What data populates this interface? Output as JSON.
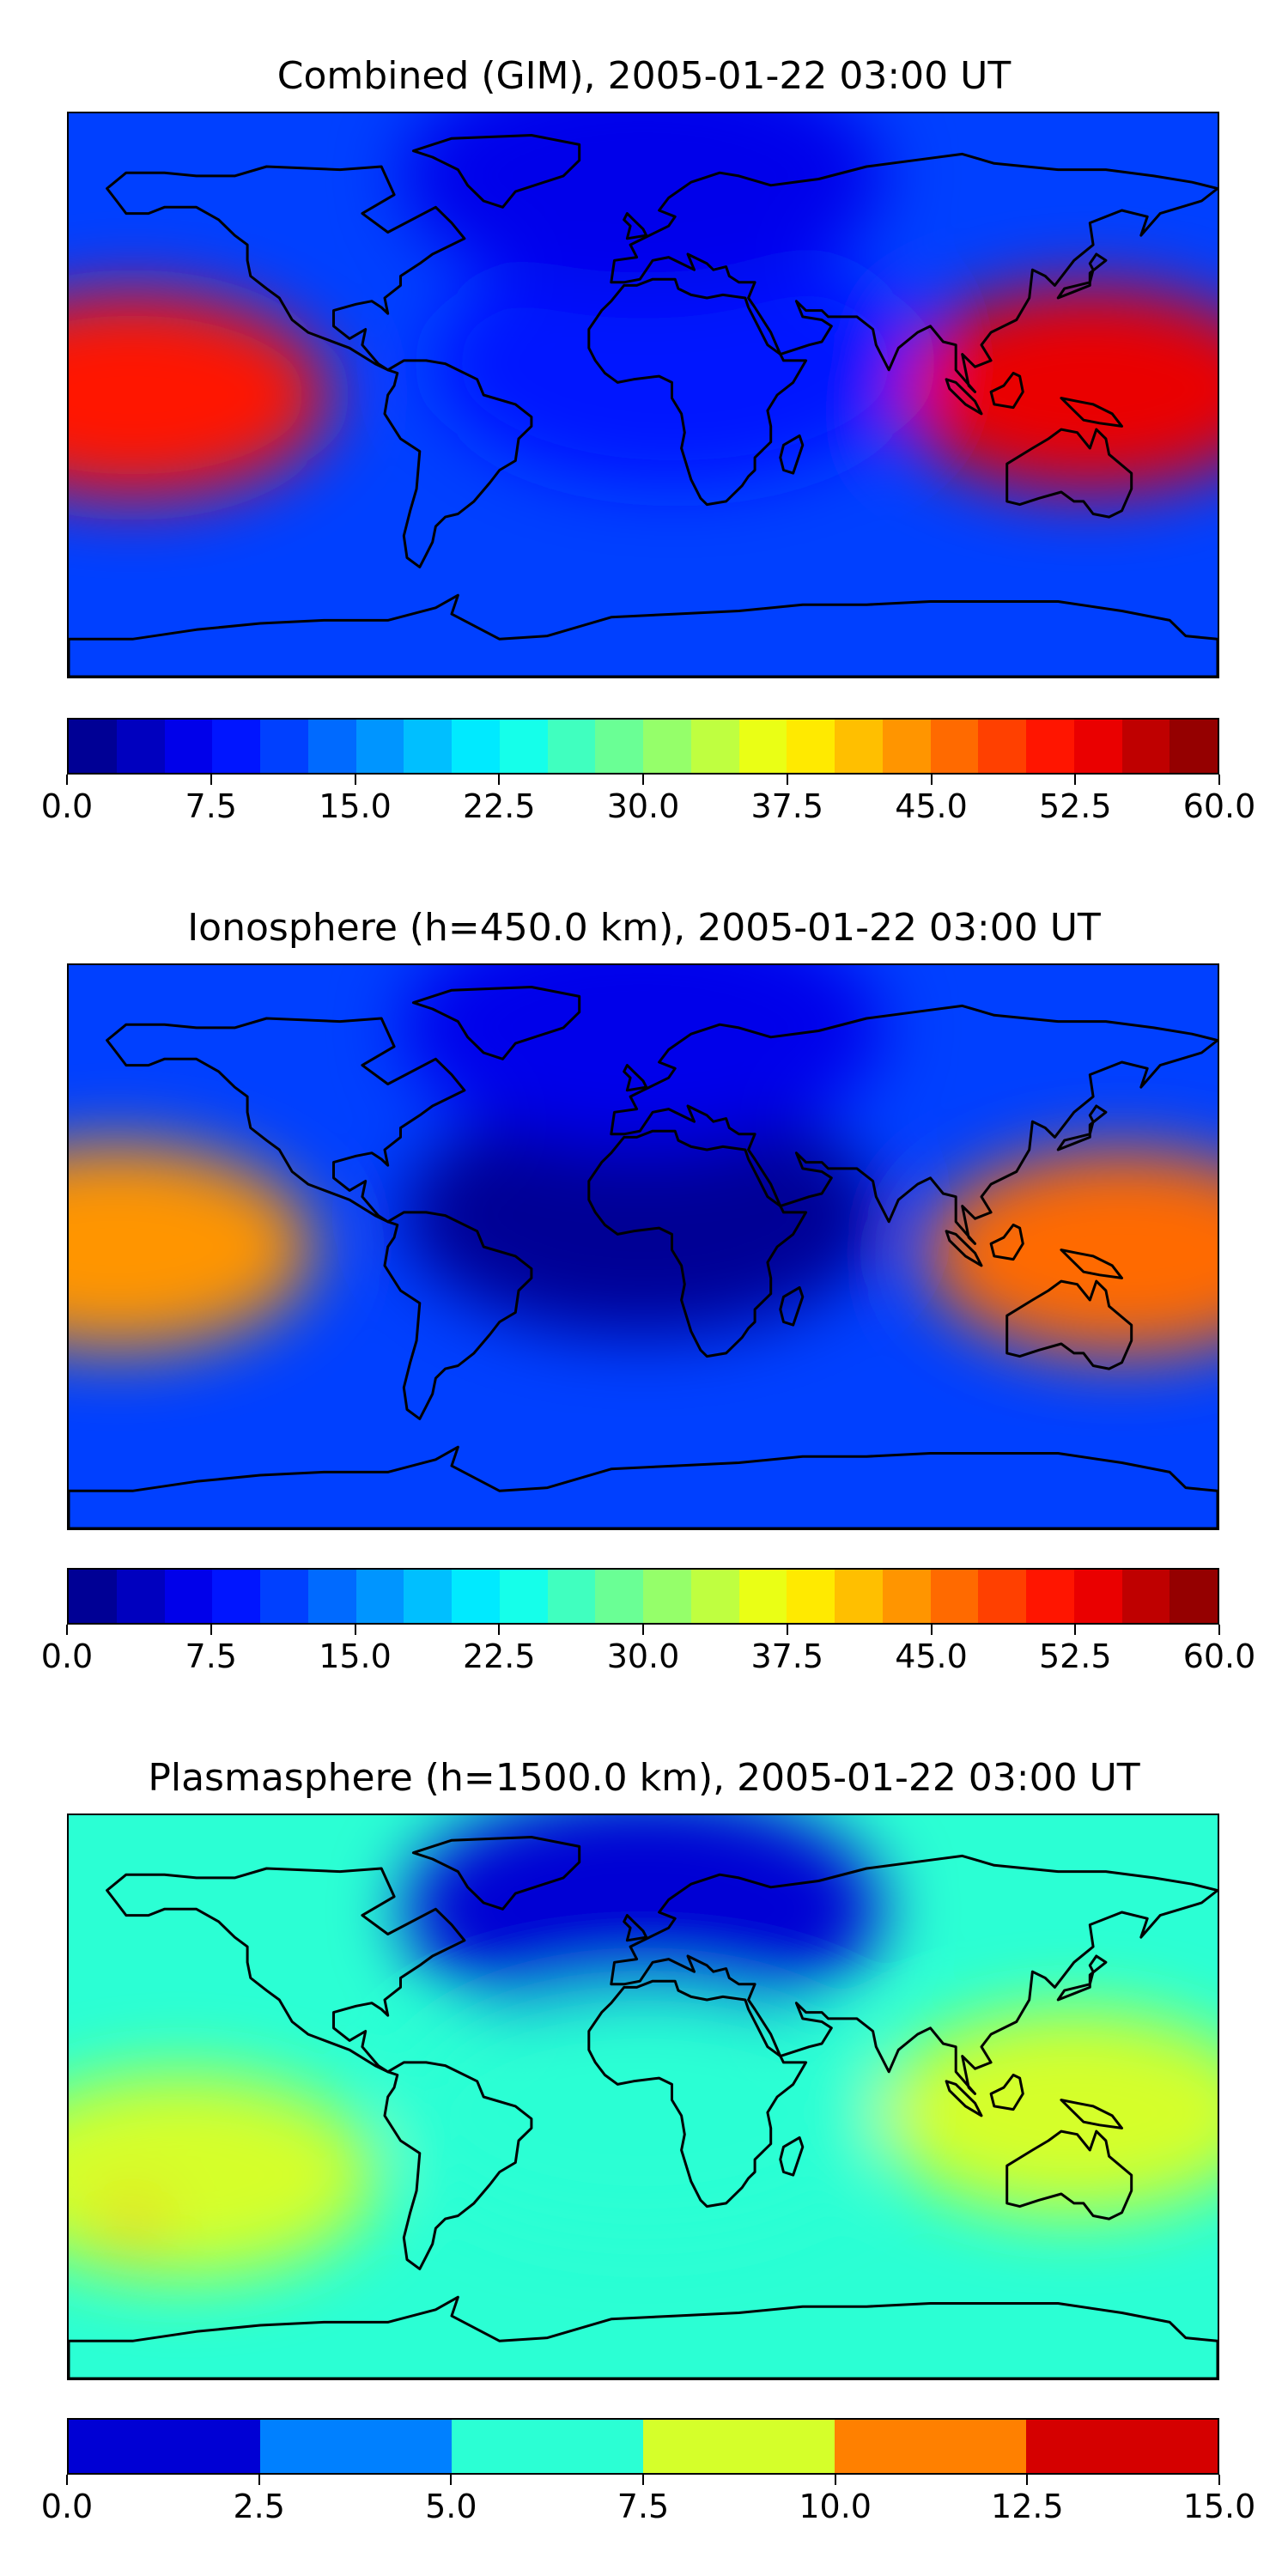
{
  "chart_data": [
    {
      "type": "heatmap",
      "title": "Combined (GIM), 2005-01-22 03:00 UT",
      "projection": "equirectangular world map with coastlines",
      "colormap": "jet",
      "colorbar": {
        "min": 0.0,
        "max": 60.0,
        "levels": 24,
        "ticks": [
          0.0,
          7.5,
          15.0,
          22.5,
          30.0,
          37.5,
          45.0,
          52.5,
          60.0
        ],
        "tick_labels": [
          "0.0",
          "7.5",
          "15.0",
          "22.5",
          "30.0",
          "37.5",
          "45.0",
          "52.5",
          "60.0"
        ]
      },
      "features": [
        {
          "region": "central Pacific (west of Americas)",
          "lon": -160,
          "lat": 0,
          "value": 52
        },
        {
          "region": "Indonesia / western Pacific",
          "lon": 140,
          "lat": 2,
          "value": 53
        },
        {
          "region": "Africa / Atlantic",
          "lon": 10,
          "lat": 10,
          "value": 8
        },
        {
          "region": "high northern latitudes",
          "lon": 0,
          "lat": 70,
          "value": 6
        }
      ]
    },
    {
      "type": "heatmap",
      "title": "Ionosphere  (h=450.0 km), 2005-01-22 03:00 UT",
      "projection": "equirectangular world map with coastlines",
      "colormap": "jet",
      "colorbar": {
        "min": 0.0,
        "max": 60.0,
        "levels": 24,
        "ticks": [
          0.0,
          7.5,
          15.0,
          22.5,
          30.0,
          37.5,
          45.0,
          52.5,
          60.0
        ],
        "tick_labels": [
          "0.0",
          "7.5",
          "15.0",
          "22.5",
          "30.0",
          "37.5",
          "45.0",
          "52.5",
          "60.0"
        ]
      },
      "features": [
        {
          "region": "central Pacific (west of Americas)",
          "lon": -165,
          "lat": 0,
          "value": 44
        },
        {
          "region": "Indonesia / western Pacific",
          "lon": 150,
          "lat": -2,
          "value": 45
        },
        {
          "region": "Africa / Atlantic",
          "lon": 0,
          "lat": 10,
          "value": 2
        },
        {
          "region": "high northern latitudes",
          "lon": 0,
          "lat": 70,
          "value": 5
        }
      ]
    },
    {
      "type": "heatmap",
      "title": "Plasmasphere (h=1500.0 km), 2005-01-22 03:00 UT",
      "projection": "equirectangular world map with coastlines",
      "colormap": "jet",
      "colorbar": {
        "min": 0.0,
        "max": 15.0,
        "levels": 6,
        "ticks": [
          0.0,
          2.5,
          5.0,
          7.5,
          10.0,
          12.5,
          15.0
        ],
        "tick_labels": [
          "0.0",
          "2.5",
          "5.0",
          "7.5",
          "10.0",
          "12.5",
          "15.0"
        ]
      },
      "features": [
        {
          "region": "southeastern Pacific",
          "lon": -145,
          "lat": -25,
          "value": 8.5
        },
        {
          "region": "small spot near -160, -40",
          "lon": -160,
          "lat": -40,
          "value": 11
        },
        {
          "region": "Indonesia / northern Australia",
          "lon": 135,
          "lat": -5,
          "value": 8.2
        },
        {
          "region": "northern hemisphere high latitudes",
          "lon": 0,
          "lat": 60,
          "value": 1.5
        },
        {
          "region": "equatorial belt",
          "lon": 0,
          "lat": -5,
          "value": 6
        }
      ]
    }
  ]
}
